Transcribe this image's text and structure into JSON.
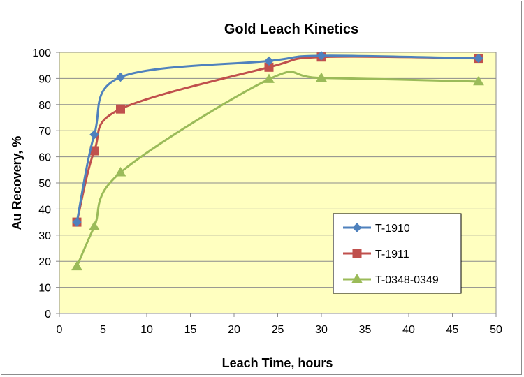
{
  "chart_data": {
    "type": "line",
    "title": "Gold Leach Kinetics",
    "xlabel": "Leach Time, hours",
    "ylabel": "Au Recovery, %",
    "xlim": [
      0,
      50
    ],
    "ylim": [
      0,
      100
    ],
    "xticks": [
      0,
      5,
      10,
      15,
      20,
      25,
      30,
      35,
      40,
      45,
      50
    ],
    "yticks": [
      0,
      10,
      20,
      30,
      40,
      50,
      60,
      70,
      80,
      90,
      100
    ],
    "grid": "horizontal",
    "legend_position": "bottom-right",
    "plot_background": "#ffffc0",
    "series": [
      {
        "name": "T-1910",
        "color": "#4f81bd",
        "marker": "diamond",
        "x": [
          2,
          4,
          7,
          24,
          30,
          48
        ],
        "y": [
          35,
          68.5,
          90.5,
          96.7,
          98.7,
          97.7
        ]
      },
      {
        "name": "T-1911",
        "color": "#c0504d",
        "marker": "square",
        "x": [
          2,
          4,
          7,
          24,
          30,
          48
        ],
        "y": [
          35,
          62.3,
          78.3,
          94.3,
          98.2,
          97.7
        ]
      },
      {
        "name": "T-0348-0349",
        "color": "#9bbb59",
        "marker": "triangle",
        "x": [
          2,
          4,
          7,
          24,
          30,
          48
        ],
        "y": [
          18,
          33.3,
          54,
          89.7,
          90.2,
          88.8
        ]
      }
    ]
  }
}
